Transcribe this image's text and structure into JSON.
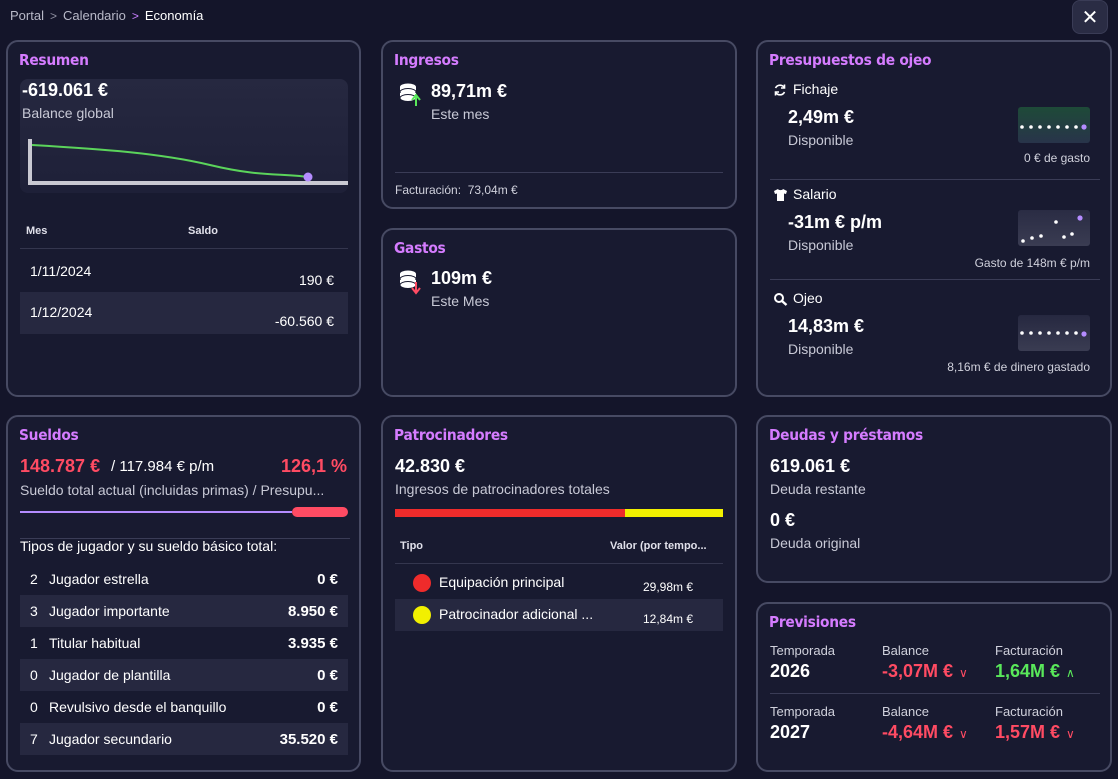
{
  "breadcrumb": {
    "items": [
      "Portal",
      "Calendario"
    ],
    "current": "Economía"
  },
  "close_label": "✕",
  "resumen": {
    "title": "Resumen",
    "balance": "-619.061 €",
    "balance_label": "Balance global",
    "table": {
      "headers": [
        "Mes",
        "Saldo"
      ],
      "rows": [
        {
          "mes": "1/11/2024",
          "saldo": "190 €"
        },
        {
          "mes": "1/12/2024",
          "saldo": "-60.560 €"
        }
      ]
    }
  },
  "ingresos": {
    "title": "Ingresos",
    "value": "89,71m €",
    "label": "Este mes",
    "footer": "Facturación:  73,04m €"
  },
  "gastos": {
    "title": "Gastos",
    "value": "109m €",
    "label": "Este Mes"
  },
  "presupuestos": {
    "title": "Presupuestos de ojeo",
    "items": [
      {
        "icon": "refresh-icon",
        "name": "Fichaje",
        "value": "2,49m €",
        "label": "Disponible",
        "note": "0 € de gasto"
      },
      {
        "icon": "shirt-icon",
        "name": "Salario",
        "value": "-31m € p/m",
        "label": "Disponible",
        "note": "Gasto de 148m € p/m"
      },
      {
        "icon": "magnifier-icon",
        "name": "Ojeo",
        "value": "14,83m €",
        "label": "Disponible",
        "note": "8,16m € de dinero gastado"
      }
    ]
  },
  "sueldos": {
    "title": "Sueldos",
    "actual": "148.787 €",
    "budget": "/ 117.984 € p/m",
    "percent": "126,1 %",
    "desc": "Sueldo total actual (incluidas primas) / Presupu...",
    "bar_ratio": 1.261,
    "types_title": "Tipos de jugador y su sueldo básico total:",
    "types": [
      {
        "count": "2",
        "name": "Jugador estrella",
        "value": "0 €"
      },
      {
        "count": "3",
        "name": "Jugador importante",
        "value": "8.950 €"
      },
      {
        "count": "1",
        "name": "Titular habitual",
        "value": "3.935 €"
      },
      {
        "count": "0",
        "name": "Jugador de plantilla",
        "value": "0 €"
      },
      {
        "count": "0",
        "name": "Revulsivo desde el banquillo",
        "value": "0 €"
      },
      {
        "count": "7",
        "name": "Jugador secundario",
        "value": "35.520 €"
      }
    ]
  },
  "patrocinadores": {
    "title": "Patrocinadores",
    "total": "42.830 €",
    "label": "Ingresos de patrocinadores totales",
    "headers": [
      "Tipo",
      "Valor (por tempo..."
    ],
    "rows": [
      {
        "name": "Equipación principal",
        "value": "29,98m €",
        "color": "#ef2b2b",
        "amount": 29.98
      },
      {
        "name": "Patrocinador adicional ...",
        "value": "12,84m €",
        "color": "#f2f000",
        "amount": 12.84
      }
    ]
  },
  "deudas": {
    "title": "Deudas y préstamos",
    "remaining": "619.061 €",
    "remaining_label": "Deuda restante",
    "original": "0 €",
    "original_label": "Deuda original"
  },
  "previsiones": {
    "title": "Previsiones",
    "labels": {
      "season": "Temporada",
      "balance": "Balance",
      "billing": "Facturación"
    },
    "rows": [
      {
        "season": "2026",
        "balance": "-3,07M €",
        "billing": "1,64M €",
        "billing_trend": "up"
      },
      {
        "season": "2027",
        "balance": "-4,64M €",
        "billing": "1,57M €",
        "billing_trend": "down"
      }
    ]
  },
  "colors": {
    "accent": "#d57cff",
    "negative": "#ff4b63",
    "positive": "#59e85a",
    "line": "#5bd45b"
  }
}
